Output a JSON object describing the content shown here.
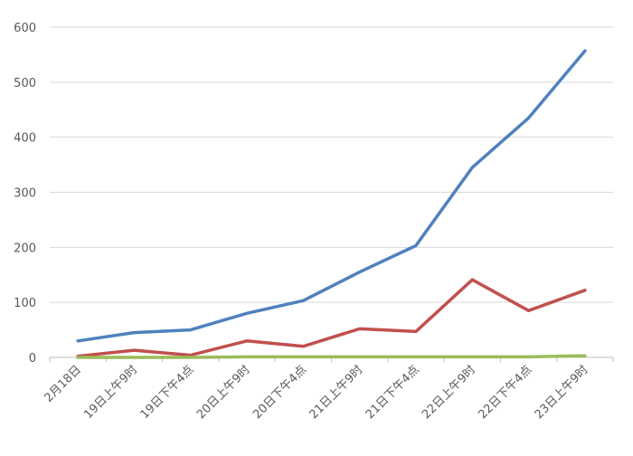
{
  "chart_data": {
    "type": "line",
    "title": "",
    "xlabel": "",
    "ylabel": "",
    "ylim": [
      0,
      600
    ],
    "yticks": [
      0,
      100,
      200,
      300,
      400,
      500,
      600
    ],
    "grid": true,
    "categories": [
      "2月18日",
      "19日上午9时",
      "19日下午4点",
      "20日上午9时",
      "20日下午4点",
      "21日上午9时",
      "21日下午4点",
      "22日上午9时",
      "22日下午4点",
      "23日上午9时"
    ],
    "series": [
      {
        "color": "#4f81bd",
        "values": [
          30,
          45,
          50,
          80,
          103,
          155,
          203,
          345,
          435,
          557
        ]
      },
      {
        "color": "#c0504d",
        "values": [
          2,
          13,
          4,
          30,
          20,
          52,
          47,
          141,
          85,
          122
        ]
      },
      {
        "color": "#9bbb59",
        "values": [
          0,
          0,
          0,
          1,
          1,
          1,
          1,
          1,
          1,
          3
        ]
      }
    ]
  }
}
